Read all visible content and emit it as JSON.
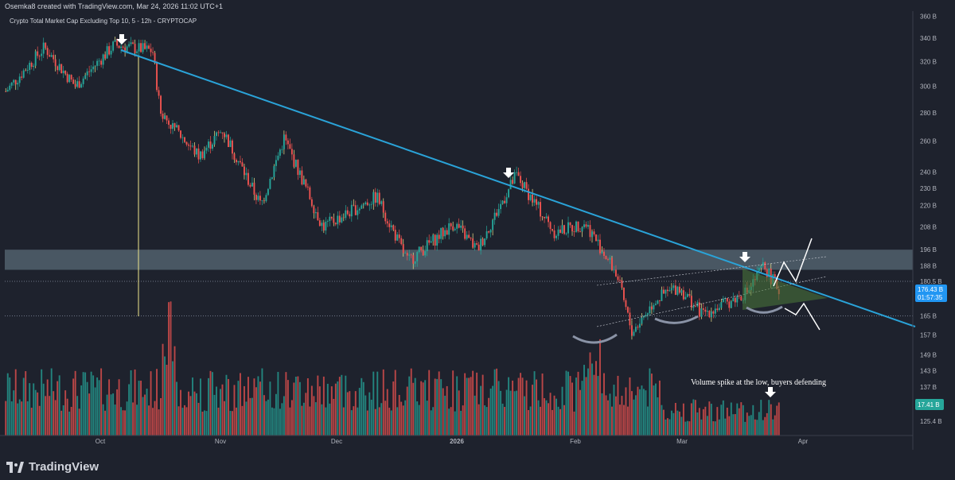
{
  "header": {
    "created_by": "Osemka8 created with TradingView.com, Mar 24, 2026 11:02 UTC+1",
    "symbol": "Crypto Total Market Cap Excluding Top 10, 5 - 12h - CRYPTOCAP"
  },
  "price_axis": {
    "ticks": [
      "360 B",
      "340 B",
      "320 B",
      "300 B",
      "280 B",
      "260 B",
      "240 B",
      "230 B",
      "220 B",
      "208 B",
      "196 B",
      "188 B",
      "180.5 B",
      "176.43 B",
      "165 B",
      "157 B",
      "149 B",
      "143 B",
      "137 B",
      "125.4 B"
    ],
    "current_price": "176.43 B",
    "countdown": "01:57:35",
    "volume_label": "17.41 B",
    "level_label": "180.5 B"
  },
  "time_axis": {
    "labels": [
      "Oct",
      "Nov",
      "Dec",
      "2026",
      "Feb",
      "Mar",
      "Apr"
    ]
  },
  "annotations": {
    "volume_note": "Volume spike at the low, buyers defending"
  },
  "branding": {
    "name": "TradingView"
  },
  "colors": {
    "background": "#1e222d",
    "up": "#26a69a",
    "down": "#ef5350",
    "trendline": "#2aa3d8",
    "wick_highlight": "#f0e68c",
    "zone": "#6e8490",
    "triangle": "#4c7a3a",
    "price_tag": "#2196f3",
    "volume_tag": "#26a69a"
  },
  "chart_data": {
    "type": "candlestick",
    "title": "Crypto Total Market Cap Excluding Top 10, 5 - 12h - CRYPTOCAP",
    "ylim_billion": [
      115,
      362
    ],
    "x_start": "2025-09-07",
    "x_end": "2026-04-20",
    "scale": "log",
    "interval": "12h",
    "price_path_billion": [
      [
        0,
        296
      ],
      [
        0.05,
        332
      ],
      [
        0.09,
        300
      ],
      [
        0.14,
        334
      ],
      [
        0.19,
        329
      ],
      [
        0.2,
        280
      ],
      [
        0.25,
        250
      ],
      [
        0.28,
        268
      ],
      [
        0.33,
        220
      ],
      [
        0.36,
        262
      ],
      [
        0.41,
        208
      ],
      [
        0.48,
        225
      ],
      [
        0.52,
        190
      ],
      [
        0.58,
        210
      ],
      [
        0.61,
        196
      ],
      [
        0.66,
        238
      ],
      [
        0.71,
        205
      ],
      [
        0.75,
        210
      ],
      [
        0.79,
        184
      ],
      [
        0.81,
        158
      ],
      [
        0.84,
        172
      ],
      [
        0.87,
        178
      ],
      [
        0.9,
        166
      ],
      [
        0.93,
        170
      ],
      [
        0.96,
        176
      ],
      [
        0.98,
        188
      ],
      [
        1.0,
        176.43
      ]
    ],
    "volume_last_billion": 17.41,
    "support_zone_billion": [
      186,
      196
    ],
    "horizontal_levels_billion": [
      180.5,
      165
    ],
    "descending_trendline": "from the October high (~330 B) to current ~176 B and beyond",
    "arrows_at": [
      "2025-10-06",
      "2026-01-14",
      "2026-03-18",
      "volume spike near 2026-03-24"
    ]
  }
}
